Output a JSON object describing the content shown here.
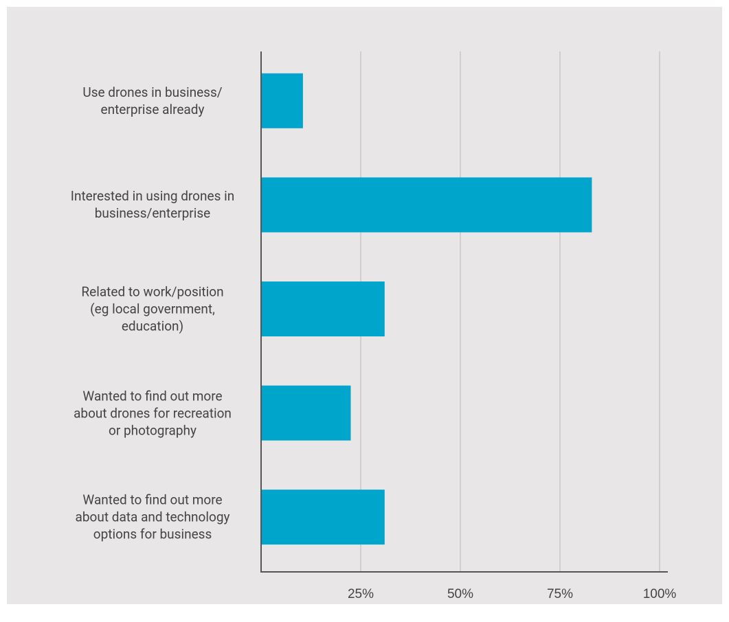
{
  "chart_data": {
    "type": "barh",
    "categories": [
      "Use drones in business/\nenterprise already",
      "Interested in using drones in\nbusiness/enterprise",
      "Related to work/position\n(eg local government,\neducation)",
      "Wanted to find out more\nabout drones for recreation\nor photography",
      "Wanted to find out more\nabout data and technology\noptions for business"
    ],
    "values": [
      10.5,
      83,
      31,
      22.5,
      31
    ],
    "color": "#00a5cb",
    "xlim": [
      0,
      100
    ],
    "xticks": [
      {
        "value": 25,
        "label": "25%"
      },
      {
        "value": 50,
        "label": "50%"
      },
      {
        "value": 75,
        "label": "75%"
      },
      {
        "value": 100,
        "label": "100%"
      }
    ],
    "grid": true
  }
}
